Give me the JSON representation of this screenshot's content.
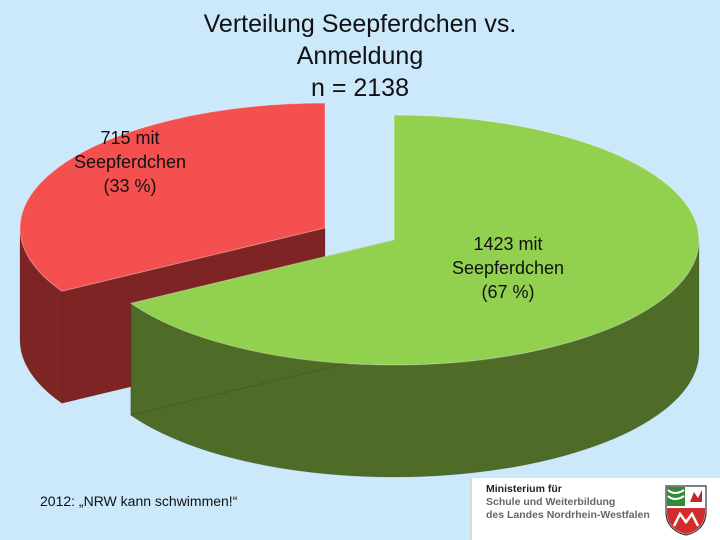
{
  "title": {
    "line1": "Verteilung Seepferdchen vs.",
    "line2": "Anmeldung",
    "line3": "n = 2138"
  },
  "chart_data": {
    "type": "pie",
    "title": "Verteilung Seepferdchen vs. Anmeldung n = 2138",
    "total": 2138,
    "slices": [
      {
        "value": 715,
        "percent": 33,
        "label_lines": [
          "715 mit",
          "Seepferdchen",
          "(33 %)"
        ],
        "color_top": "#f55050",
        "color_side": "#7e2424"
      },
      {
        "value": 1423,
        "percent": 67,
        "label_lines": [
          "1423 mit",
          "Seepferdchen",
          "(67 %)"
        ],
        "color_top": "#92d050",
        "color_side": "#4e6b28"
      }
    ],
    "style": "3d-exploded"
  },
  "footer": {
    "text": "2012: „NRW kann schwimmen!“"
  },
  "logo": {
    "line1": "Ministerium für",
    "line2": "Schule und Weiterbildung",
    "line3": "des Landes Nordrhein-Westfalen"
  }
}
